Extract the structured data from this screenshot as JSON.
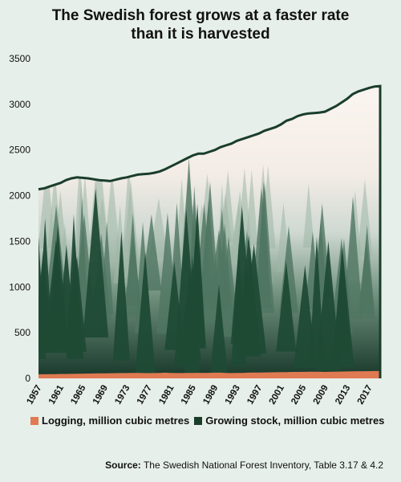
{
  "title_line1": "The Swedish forest grows at a faster rate",
  "title_line2": "than it is harvested",
  "legend": {
    "logging": "Logging, million cubic metres",
    "growing": "Growing stock, million cubic metres"
  },
  "source": {
    "label": "Source:",
    "text": "The Swedish National Forest Inventory, Table 3.17 & 4.2"
  },
  "colors": {
    "background": "#e6efe9",
    "logging": "#e07a52",
    "growing_line": "#1a3d2c",
    "forest_dark": "#17382a",
    "mist": "#f6eee8"
  },
  "chart_data": {
    "type": "area",
    "ylim": [
      0,
      3500
    ],
    "yticks": [
      "0",
      "500",
      "1000",
      "1500",
      "2000",
      "2500",
      "3000",
      "3500"
    ],
    "xticks": [
      "1957",
      "1961",
      "1965",
      "1969",
      "1973",
      "1977",
      "1981",
      "1985",
      "1989",
      "1993",
      "1997",
      "2001",
      "2005",
      "2009",
      "2013",
      "2017"
    ],
    "x": [
      1957,
      1958,
      1959,
      1960,
      1961,
      1962,
      1963,
      1964,
      1965,
      1966,
      1967,
      1968,
      1969,
      1970,
      1971,
      1972,
      1973,
      1974,
      1975,
      1976,
      1977,
      1978,
      1979,
      1980,
      1981,
      1982,
      1983,
      1984,
      1985,
      1986,
      1987,
      1988,
      1989,
      1990,
      1991,
      1992,
      1993,
      1994,
      1995,
      1996,
      1997,
      1998,
      1999,
      2000,
      2001,
      2002,
      2003,
      2004,
      2005,
      2006,
      2007,
      2008,
      2009,
      2010,
      2011,
      2012,
      2013,
      2014,
      2015,
      2016,
      2017,
      2018,
      2019
    ],
    "series": [
      {
        "name": "Growing stock, million cubic metres",
        "values": [
          2070,
          2080,
          2100,
          2120,
          2140,
          2170,
          2190,
          2200,
          2195,
          2190,
          2180,
          2170,
          2165,
          2160,
          2175,
          2190,
          2200,
          2215,
          2230,
          2235,
          2240,
          2250,
          2265,
          2290,
          2320,
          2350,
          2380,
          2410,
          2440,
          2460,
          2460,
          2480,
          2500,
          2530,
          2550,
          2570,
          2600,
          2620,
          2640,
          2660,
          2680,
          2710,
          2730,
          2750,
          2780,
          2820,
          2840,
          2870,
          2890,
          2900,
          2905,
          2910,
          2920,
          2950,
          2980,
          3020,
          3060,
          3110,
          3140,
          3160,
          3180,
          3195,
          3200
        ]
      },
      {
        "name": "Logging, million cubic metres",
        "values": [
          45,
          45,
          46,
          47,
          48,
          48,
          49,
          50,
          52,
          53,
          54,
          55,
          55,
          56,
          57,
          58,
          58,
          59,
          60,
          58,
          57,
          58,
          60,
          62,
          60,
          58,
          58,
          59,
          60,
          61,
          60,
          61,
          62,
          62,
          60,
          58,
          59,
          60,
          62,
          63,
          64,
          65,
          66,
          67,
          68,
          69,
          70,
          70,
          71,
          72,
          73,
          72,
          70,
          72,
          74,
          75,
          76,
          77,
          78,
          78,
          79,
          80,
          80
        ]
      }
    ]
  }
}
